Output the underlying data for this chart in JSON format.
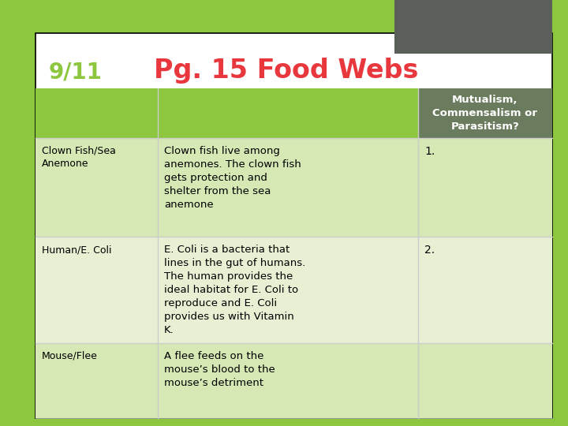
{
  "title_date": "9/11",
  "title_main": "Pg. 15 Food Webs",
  "bg_color": "#8dc63f",
  "white_panel_color": "#ffffff",
  "header_green": "#8dc63f",
  "header_col3_color": "#6b7c5e",
  "header_text": "Mutualism,\nCommensalism or\nParasitism?",
  "date_color": "#8dc63f",
  "title_color": "#e8383e",
  "dark_rect_color": "#5a5f5a",
  "row_bg_alt1": "#d6e8b4",
  "row_bg_alt2": "#e8f0d4",
  "border_color": "#000000",
  "grid_color": "#cccccc",
  "rows": [
    {
      "col1": "Clown Fish/Sea\nAnemone",
      "col2": "Clown fish live among\nanemones. The clown fish\ngets protection and\nshelter from the sea\nanemone",
      "col3": "1."
    },
    {
      "col1": "Human/E. Coli",
      "col2": "E. Coli is a bacteria that\nlines in the gut of humans.\nThe human provides the\nideal habitat for E. Coli to\nreproduce and E. Coli\nprovides us with Vitamin\nK.",
      "col3": "2."
    },
    {
      "col1": "Mouse/Flee",
      "col2": "A flee feeds on the\nmouse’s blood to the\nmouse’s detriment",
      "col3": ""
    }
  ],
  "figsize": [
    7.2,
    5.4
  ],
  "dpi": 100
}
